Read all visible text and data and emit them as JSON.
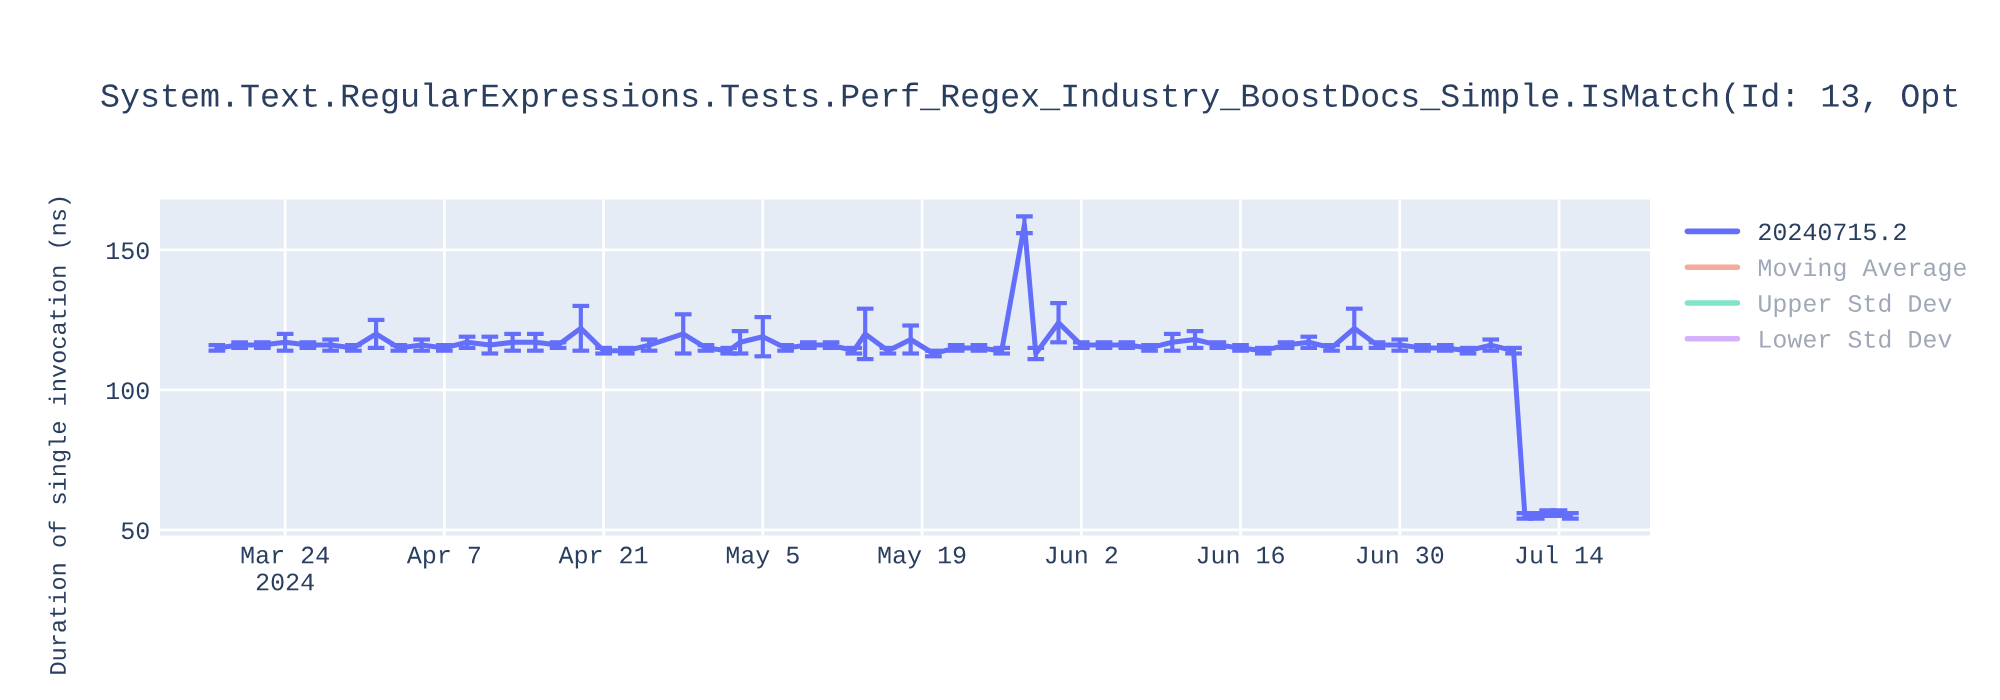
{
  "chart_data": {
    "type": "line",
    "title": "System.Text.RegularExpressions.Tests.Perf_Regex_Industry_BoostDocs_Simple.IsMatch(Id: 13, Opt",
    "ylabel": "Duration of single invocation (ns)",
    "x": [
      "2024-03-18",
      "2024-03-20",
      "2024-03-22",
      "2024-03-24",
      "2024-03-26",
      "2024-03-28",
      "2024-03-30",
      "2024-04-01",
      "2024-04-03",
      "2024-04-05",
      "2024-04-07",
      "2024-04-09",
      "2024-04-11",
      "2024-04-13",
      "2024-04-15",
      "2024-04-17",
      "2024-04-19",
      "2024-04-21",
      "2024-04-23",
      "2024-04-25",
      "2024-04-28",
      "2024-04-30",
      "2024-05-02",
      "2024-05-03",
      "2024-05-05",
      "2024-05-07",
      "2024-05-09",
      "2024-05-11",
      "2024-05-13",
      "2024-05-14",
      "2024-05-16",
      "2024-05-18",
      "2024-05-20",
      "2024-05-22",
      "2024-05-24",
      "2024-05-26",
      "2024-05-28",
      "2024-05-29",
      "2024-05-31",
      "2024-06-02",
      "2024-06-04",
      "2024-06-06",
      "2024-06-08",
      "2024-06-10",
      "2024-06-12",
      "2024-06-14",
      "2024-06-16",
      "2024-06-18",
      "2024-06-20",
      "2024-06-22",
      "2024-06-24",
      "2024-06-26",
      "2024-06-28",
      "2024-06-30",
      "2024-07-02",
      "2024-07-04",
      "2024-07-06",
      "2024-07-08",
      "2024-07-10",
      "2024-07-11",
      "2024-07-12",
      "2024-07-13",
      "2024-07-14",
      "2024-07-15"
    ],
    "series": [
      {
        "name": "20240715.2",
        "color": "#636efa",
        "values": [
          115,
          116,
          116,
          117,
          116,
          116,
          115,
          120,
          115,
          116,
          115,
          117,
          116,
          117,
          117,
          116,
          122,
          114,
          114,
          116,
          120,
          115,
          114,
          117,
          119,
          115,
          116,
          116,
          114,
          120,
          114,
          118,
          113,
          115,
          115,
          114,
          159,
          113,
          124,
          116,
          116,
          116,
          115,
          117,
          118,
          116,
          115,
          114,
          116,
          117,
          115,
          122,
          116,
          116,
          115,
          115,
          114,
          116,
          114,
          55,
          55,
          56,
          56,
          55
        ],
        "errors": [
          1,
          1,
          1,
          3,
          1,
          2,
          1,
          5,
          1,
          2,
          1,
          2,
          3,
          3,
          3,
          1,
          8,
          1,
          1,
          2,
          7,
          1,
          1,
          4,
          7,
          1,
          1,
          1,
          1,
          9,
          1,
          5,
          1,
          1,
          1,
          1,
          3,
          2,
          7,
          1,
          1,
          1,
          1,
          3,
          3,
          1,
          1,
          1,
          1,
          2,
          1,
          7,
          1,
          2,
          1,
          1,
          1,
          2,
          1,
          1,
          1,
          1,
          1,
          1
        ]
      },
      {
        "name": "Moving Average",
        "color": "#ef553b",
        "values": [
          null,
          null,
          null,
          null,
          null,
          null,
          null,
          null,
          null,
          null,
          null,
          null,
          null,
          null,
          null,
          null,
          null,
          null,
          null,
          null,
          null,
          null,
          null,
          null,
          null,
          null,
          null,
          null,
          null,
          null,
          null,
          null,
          null,
          null,
          null,
          null,
          null,
          null,
          null,
          null,
          null,
          null,
          null,
          null,
          null,
          null,
          null,
          null,
          null,
          null,
          null,
          null,
          null,
          null,
          null,
          null,
          null,
          null,
          null,
          null,
          null,
          null,
          null,
          null
        ]
      },
      {
        "name": "Upper Std Dev",
        "color": "#00cc96",
        "values": [
          null,
          null,
          null,
          null,
          null,
          null,
          null,
          null,
          null,
          null,
          null,
          null,
          null,
          null,
          null,
          null,
          null,
          null,
          null,
          null,
          null,
          null,
          null,
          null,
          null,
          null,
          null,
          null,
          null,
          null,
          null,
          null,
          null,
          null,
          null,
          null,
          null,
          null,
          null,
          null,
          null,
          null,
          null,
          null,
          null,
          null,
          null,
          null,
          null,
          null,
          null,
          null,
          null,
          null,
          null,
          null,
          null,
          null,
          null,
          null,
          null,
          null,
          null,
          null
        ]
      },
      {
        "name": "Lower Std Dev",
        "color": "#ab63fa",
        "values": [
          null,
          null,
          null,
          null,
          null,
          null,
          null,
          null,
          null,
          null,
          null,
          null,
          null,
          null,
          null,
          null,
          null,
          null,
          null,
          null,
          null,
          null,
          null,
          null,
          null,
          null,
          null,
          null,
          null,
          null,
          null,
          null,
          null,
          null,
          null,
          null,
          null,
          null,
          null,
          null,
          null,
          null,
          null,
          null,
          null,
          null,
          null,
          null,
          null,
          null,
          null,
          null,
          null,
          null,
          null,
          null,
          null,
          null,
          null,
          null,
          null,
          null,
          null,
          null
        ]
      }
    ],
    "xlim": [
      "2024-03-13",
      "2024-07-22"
    ],
    "xticks": [
      {
        "value": "2024-03-24",
        "label": "Mar 24\n2024"
      },
      {
        "value": "2024-04-07",
        "label": "Apr 7"
      },
      {
        "value": "2024-04-21",
        "label": "Apr 21"
      },
      {
        "value": "2024-05-05",
        "label": "May 5"
      },
      {
        "value": "2024-05-19",
        "label": "May 19"
      },
      {
        "value": "2024-06-02",
        "label": "Jun 2"
      },
      {
        "value": "2024-06-16",
        "label": "Jun 16"
      },
      {
        "value": "2024-06-30",
        "label": "Jun 30"
      },
      {
        "value": "2024-07-14",
        "label": "Jul 14"
      }
    ],
    "ylim": [
      48,
      168
    ],
    "yticks": [
      50,
      100,
      150
    ],
    "grid": true,
    "legend": "top right",
    "marker": "none",
    "line_style": "solid"
  }
}
